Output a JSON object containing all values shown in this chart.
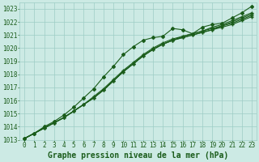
{
  "title": "Graphe pression niveau de la mer (hPa)",
  "bg_color": "#cceae4",
  "grid_color": "#9ecdc5",
  "line_color": "#1a5c1a",
  "xlim": [
    -0.5,
    23.5
  ],
  "ylim": [
    1013,
    1023.5
  ],
  "xticks": [
    0,
    1,
    2,
    3,
    4,
    5,
    6,
    7,
    8,
    9,
    10,
    11,
    12,
    13,
    14,
    15,
    16,
    17,
    18,
    19,
    20,
    21,
    22,
    23
  ],
  "yticks": [
    1013,
    1014,
    1015,
    1016,
    1017,
    1018,
    1019,
    1020,
    1021,
    1022,
    1023
  ],
  "series": [
    [
      1013.1,
      1013.5,
      1013.9,
      1014.3,
      1014.7,
      1015.2,
      1015.7,
      1016.2,
      1016.8,
      1017.5,
      1018.2,
      1018.8,
      1019.4,
      1019.9,
      1020.3,
      1020.6,
      1020.8,
      1021.0,
      1021.2,
      1021.4,
      1021.6,
      1021.8,
      1022.1,
      1022.4
    ],
    [
      1013.1,
      1013.5,
      1013.9,
      1014.3,
      1014.7,
      1015.2,
      1015.7,
      1016.2,
      1016.8,
      1017.5,
      1018.2,
      1018.8,
      1019.4,
      1019.9,
      1020.3,
      1020.6,
      1020.8,
      1021.0,
      1021.2,
      1021.4,
      1021.7,
      1021.9,
      1022.2,
      1022.5
    ],
    [
      1013.1,
      1013.5,
      1013.9,
      1014.3,
      1014.7,
      1015.2,
      1015.7,
      1016.2,
      1016.8,
      1017.5,
      1018.2,
      1018.8,
      1019.4,
      1019.9,
      1020.3,
      1020.6,
      1020.9,
      1021.1,
      1021.3,
      1021.5,
      1021.7,
      1022.0,
      1022.3,
      1022.6
    ],
    [
      1013.1,
      1013.5,
      1013.9,
      1014.3,
      1014.7,
      1015.2,
      1015.7,
      1016.3,
      1016.9,
      1017.6,
      1018.3,
      1018.9,
      1019.5,
      1020.0,
      1020.4,
      1020.7,
      1020.9,
      1021.1,
      1021.3,
      1021.6,
      1021.8,
      1022.1,
      1022.4,
      1022.7
    ],
    [
      1013.1,
      1013.5,
      1014.0,
      1014.4,
      1014.9,
      1015.5,
      1016.2,
      1016.9,
      1017.8,
      1018.6,
      1019.5,
      1020.1,
      1020.6,
      1020.8,
      1020.9,
      1021.5,
      1021.4,
      1021.1,
      1021.6,
      1021.8,
      1021.9,
      1022.3,
      1022.7,
      1023.2
    ]
  ],
  "font_color": "#1a5c1a",
  "xlabel_fontsize": 5.5,
  "ylabel_fontsize": 5.5,
  "title_fontsize": 7.0
}
